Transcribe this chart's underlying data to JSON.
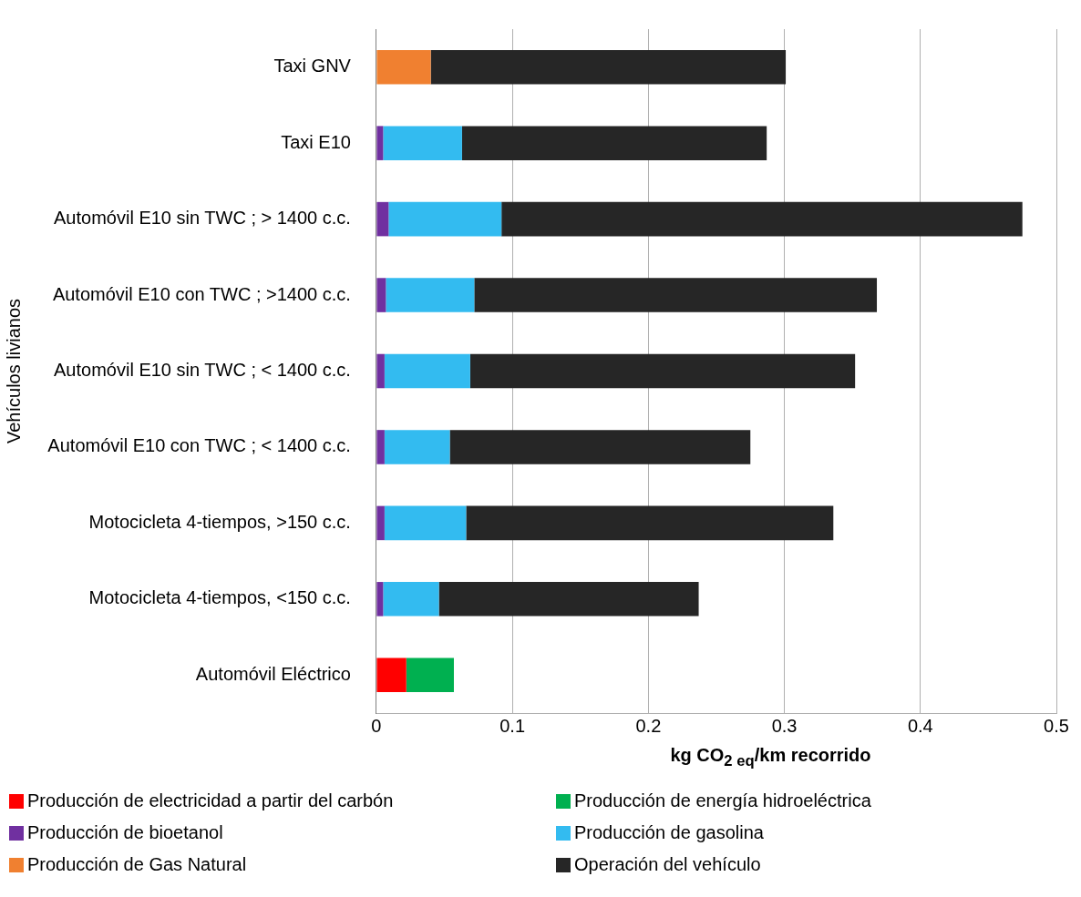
{
  "chart_data": {
    "type": "bar",
    "orientation": "horizontal",
    "stacked": true,
    "categories": [
      "Taxi GNV",
      "Taxi E10",
      "Automóvil E10 sin TWC ; > 1400 c.c.",
      "Automóvil E10 con TWC ; >1400 c.c.",
      "Automóvil E10 sin TWC ; < 1400 c.c.",
      "Automóvil E10 con TWC ; < 1400 c.c.",
      "Motocicleta 4-tiempos, >150 c.c.",
      "Motocicleta 4-tiempos, <150 c.c.",
      "Automóvil Eléctrico"
    ],
    "series": [
      {
        "name": "Producción de electricidad a partir del carbón",
        "color": "#ff0000",
        "values": [
          null,
          null,
          null,
          null,
          null,
          null,
          null,
          null,
          0.022
        ]
      },
      {
        "name": "Producción de energía hidroeléctrica",
        "color": "#00b050",
        "values": [
          null,
          null,
          null,
          null,
          null,
          null,
          null,
          null,
          0.035
        ]
      },
      {
        "name": "Producción de bioetanol",
        "color": "#7030a0",
        "values": [
          null,
          0.005,
          0.009,
          0.007,
          0.006,
          0.006,
          0.006,
          0.005,
          null
        ]
      },
      {
        "name": "Producción de gasolina",
        "color": "#33bbf0",
        "values": [
          null,
          0.058,
          0.083,
          0.065,
          0.063,
          0.048,
          0.06,
          0.041,
          null
        ]
      },
      {
        "name": "Producción de Gas Natural",
        "color": "#f08030",
        "values": [
          0.04,
          null,
          null,
          null,
          null,
          null,
          null,
          null,
          null
        ]
      },
      {
        "name": "Operación del vehículo",
        "color": "#262626",
        "values": [
          0.261,
          0.224,
          0.383,
          0.296,
          0.283,
          0.221,
          0.27,
          0.191,
          null
        ]
      }
    ],
    "xlim": [
      0,
      0.5
    ],
    "xticks": [
      0,
      0.1,
      0.2,
      0.3,
      0.4,
      0.5
    ],
    "xlabel": "kg CO$_{2 eq}$/km recorrido",
    "ylabel": "Vehículos livianos",
    "grid": "x",
    "legend": "bottom"
  }
}
